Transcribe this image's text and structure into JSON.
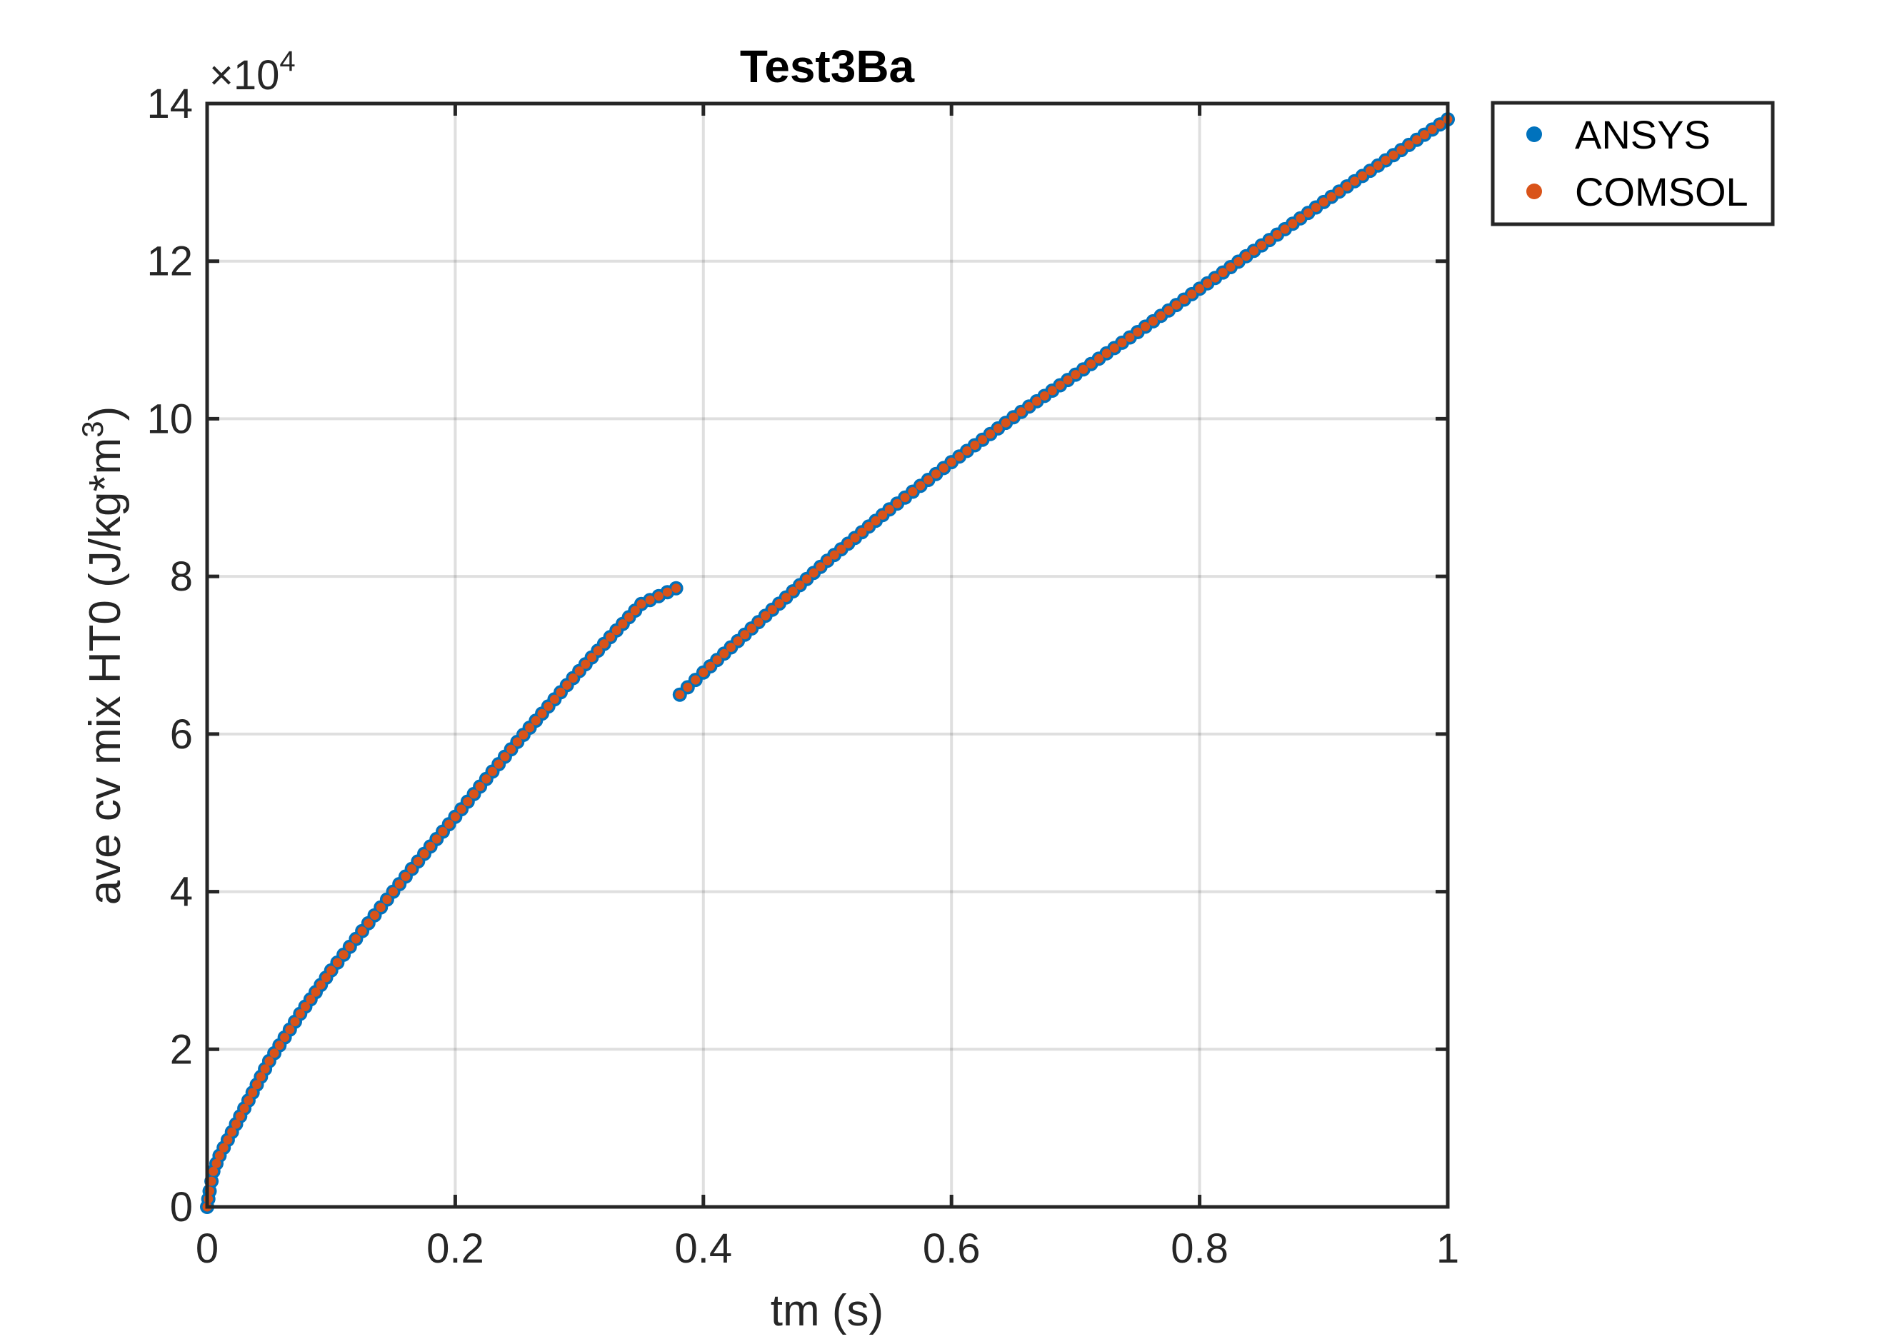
{
  "chart_data": {
    "type": "scatter",
    "title": "Test3Ba",
    "xlabel": "tm (s)",
    "ylabel": "ave cv mix HT0 (J/kg*m",
    "ylabel_sup": "3",
    "ylabel_end": ")",
    "y_exponent_prefix": "×10",
    "y_exponent_power": "4",
    "xlim": [
      0,
      1
    ],
    "ylim": [
      0,
      140000
    ],
    "x_ticks": [
      0,
      0.2,
      0.4,
      0.6,
      0.8,
      1
    ],
    "x_tick_labels": [
      "0",
      "0.2",
      "0.4",
      "0.6",
      "0.8",
      "1"
    ],
    "y_ticks": [
      0,
      20000,
      40000,
      60000,
      80000,
      100000,
      120000,
      140000
    ],
    "y_tick_labels": [
      "0",
      "2",
      "4",
      "6",
      "8",
      "10",
      "12",
      "14"
    ],
    "grid": true,
    "legend_position": "outside-top-right",
    "series": [
      {
        "name": "ANSYS",
        "color": "#0072BD",
        "segments": [
          {
            "x": [
              0,
              0.002,
              0.005,
              0.01,
              0.02,
              0.03,
              0.05,
              0.075,
              0.1,
              0.125,
              0.15,
              0.175,
              0.2,
              0.225,
              0.25,
              0.275,
              0.3,
              0.325,
              0.35,
              0.378
            ],
            "y": [
              0,
              2000,
              4500,
              6500,
              9500,
              12500,
              18500,
              24500,
              30000,
              35000,
              40000,
              44800,
              49500,
              54300,
              59000,
              63500,
              68000,
              72300,
              76500,
              78500
            ]
          },
          {
            "x": [
              0.381,
              0.4,
              0.45,
              0.5,
              0.55,
              0.6,
              0.65,
              0.7,
              0.75,
              0.8,
              0.85,
              0.9,
              0.95,
              1.0
            ],
            "y": [
              65000,
              67800,
              75000,
              82000,
              88500,
              94500,
              100200,
              105600,
              111000,
              116500,
              122000,
              127500,
              132800,
              138000
            ]
          }
        ]
      },
      {
        "name": "COMSOL",
        "color": "#D95319",
        "segments": [
          {
            "x": [
              0,
              0.002,
              0.005,
              0.01,
              0.02,
              0.03,
              0.05,
              0.075,
              0.1,
              0.125,
              0.15,
              0.175,
              0.2,
              0.225,
              0.25,
              0.275,
              0.3,
              0.325,
              0.35,
              0.378
            ],
            "y": [
              0,
              2000,
              4500,
              6500,
              9500,
              12500,
              18500,
              24500,
              30000,
              35000,
              40000,
              44800,
              49500,
              54300,
              59000,
              63500,
              68000,
              72300,
              76500,
              78500
            ]
          },
          {
            "x": [
              0.381,
              0.4,
              0.45,
              0.5,
              0.55,
              0.6,
              0.65,
              0.7,
              0.75,
              0.8,
              0.85,
              0.9,
              0.95,
              1.0
            ],
            "y": [
              65000,
              67800,
              75000,
              82000,
              88500,
              94500,
              100200,
              105600,
              111000,
              116500,
              122000,
              127500,
              132800,
              138000
            ]
          }
        ]
      }
    ]
  }
}
